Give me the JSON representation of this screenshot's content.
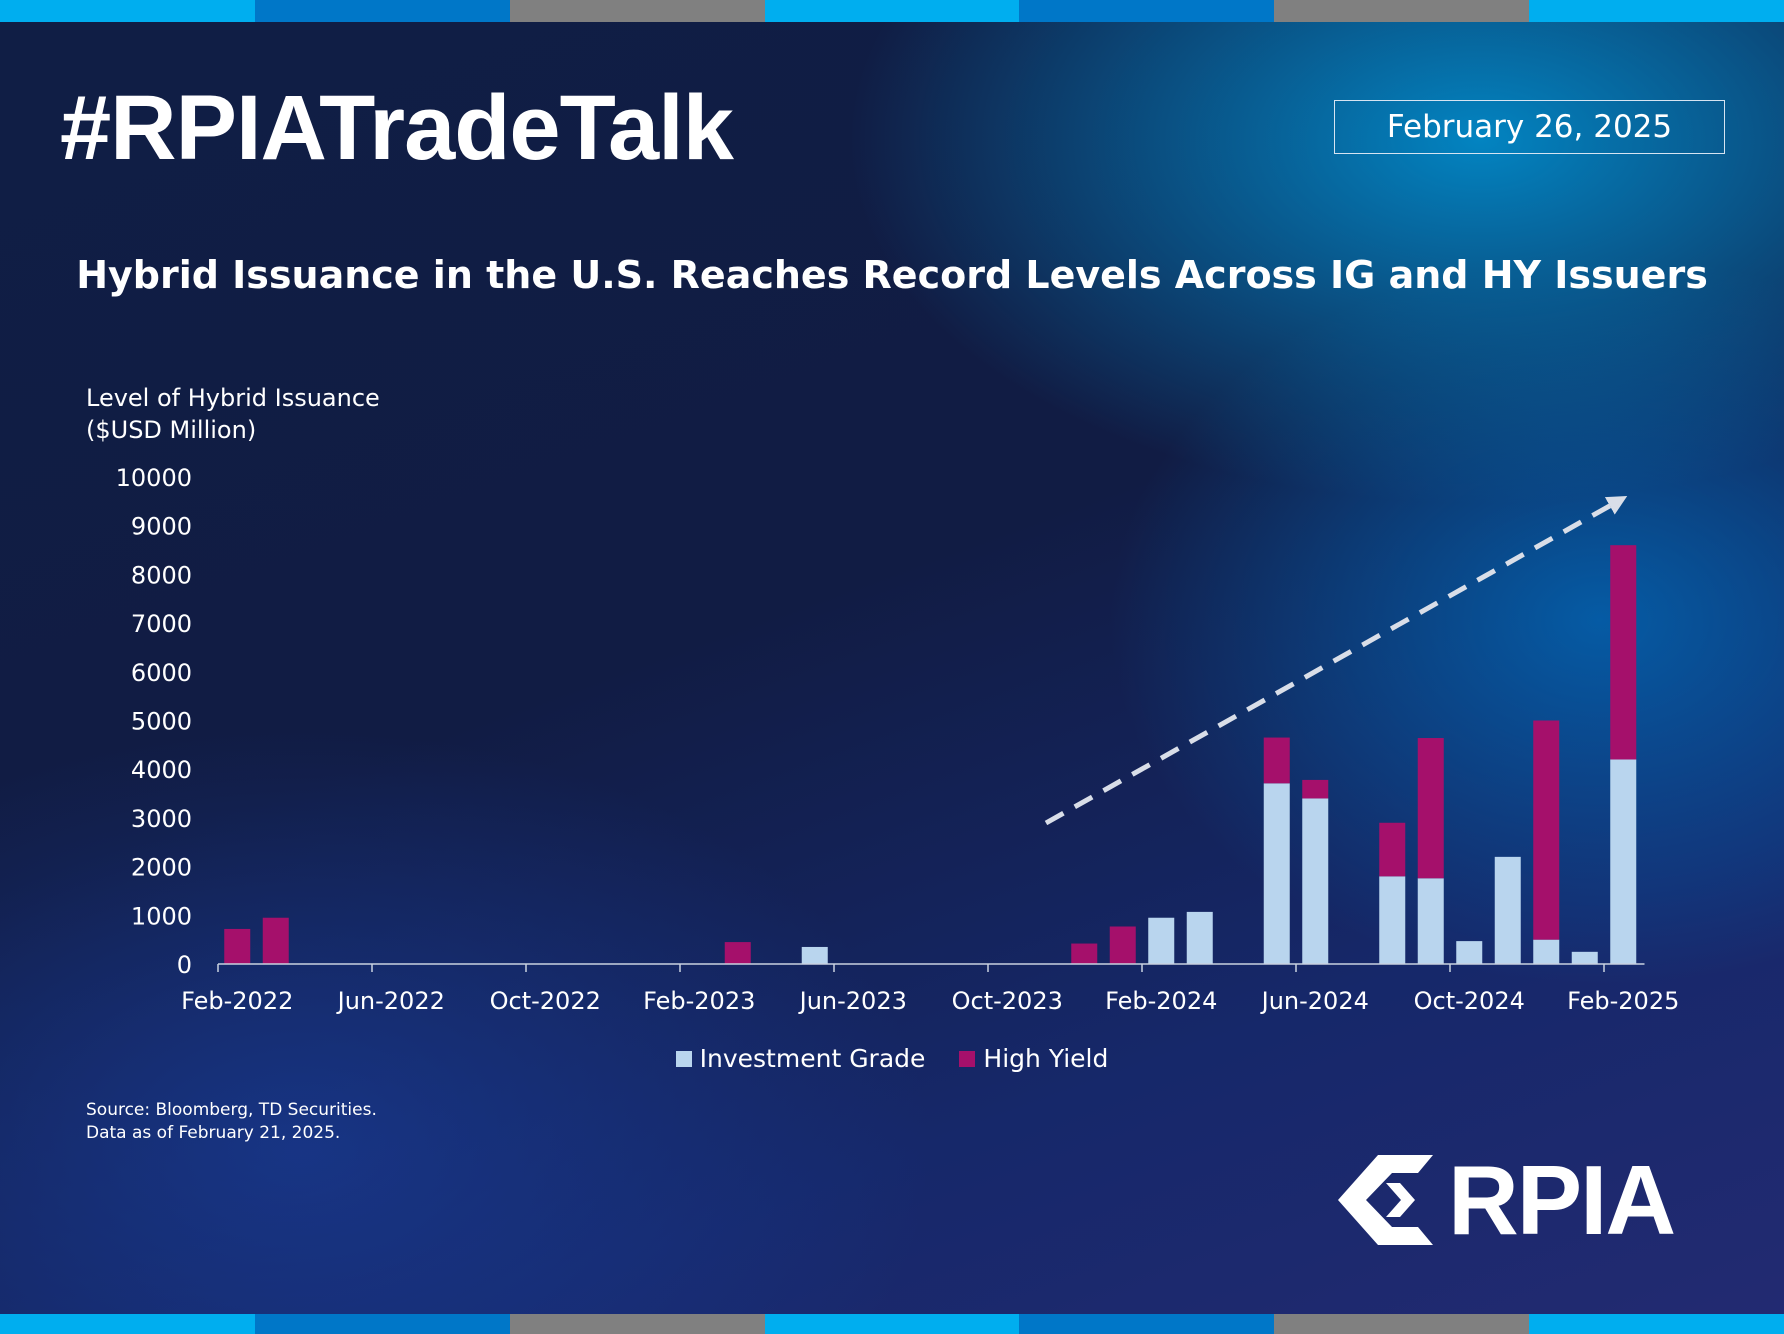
{
  "header": {
    "hashtag": "#RPIATradeTalk",
    "date": "February 26, 2025",
    "title": "Hybrid Issuance in the U.S. Reaches Record Levels Across IG and HY Issuers"
  },
  "stripe_colors": [
    "#00aeef",
    "#0077c8",
    "#808080",
    "#00aeef",
    "#0077c8",
    "#808080",
    "#00aeef"
  ],
  "footer": {
    "source_line1": "Source: Bloomberg, TD Securities.",
    "source_line2": "Data as of February 21, 2025.",
    "logo_text": "RPIA"
  },
  "chart_data": {
    "type": "bar",
    "stacked": true,
    "ylabel_line1": "Level of Hybrid Issuance",
    "ylabel_line2": "($USD Million)",
    "ylim": [
      0,
      10000
    ],
    "yticks": [
      0,
      1000,
      2000,
      3000,
      4000,
      5000,
      6000,
      7000,
      8000,
      9000,
      10000
    ],
    "xtick_labels": [
      "Feb-2022",
      "Jun-2022",
      "Oct-2022",
      "Feb-2023",
      "Jun-2023",
      "Oct-2023",
      "Feb-2024",
      "Jun-2024",
      "Oct-2024",
      "Feb-2025"
    ],
    "categories": [
      "Feb-2022",
      "Mar-2022",
      "Apr-2022",
      "May-2022",
      "Jun-2022",
      "Jul-2022",
      "Aug-2022",
      "Sep-2022",
      "Oct-2022",
      "Nov-2022",
      "Dec-2022",
      "Jan-2023",
      "Feb-2023",
      "Mar-2023",
      "Apr-2023",
      "May-2023",
      "Jun-2023",
      "Jul-2023",
      "Aug-2023",
      "Sep-2023",
      "Oct-2023",
      "Nov-2023",
      "Dec-2023",
      "Jan-2024",
      "Feb-2024",
      "Mar-2024",
      "Apr-2024",
      "May-2024",
      "Jun-2024",
      "Jul-2024",
      "Aug-2024",
      "Sep-2024",
      "Oct-2024",
      "Nov-2024",
      "Dec-2024",
      "Jan-2025",
      "Feb-2025"
    ],
    "series": [
      {
        "name": "Investment Grade",
        "color": "#b9d5ee",
        "values": [
          0,
          0,
          0,
          0,
          0,
          0,
          0,
          0,
          0,
          0,
          0,
          0,
          0,
          0,
          0,
          350,
          0,
          0,
          0,
          0,
          0,
          0,
          0,
          0,
          950,
          1070,
          0,
          3710,
          3400,
          0,
          1800,
          1760,
          470,
          2200,
          500,
          250,
          4200
        ]
      },
      {
        "name": "High Yield",
        "color": "#a5106b",
        "values": [
          720,
          950,
          0,
          0,
          0,
          0,
          0,
          0,
          0,
          0,
          0,
          0,
          0,
          450,
          0,
          0,
          0,
          0,
          0,
          0,
          0,
          0,
          420,
          770,
          0,
          0,
          0,
          940,
          380,
          0,
          1100,
          2880,
          0,
          0,
          4500,
          0,
          4400
        ]
      }
    ],
    "legend_position": "bottom-center",
    "grid": false,
    "annotation": "dashed trend arrow rising to the upper right"
  }
}
